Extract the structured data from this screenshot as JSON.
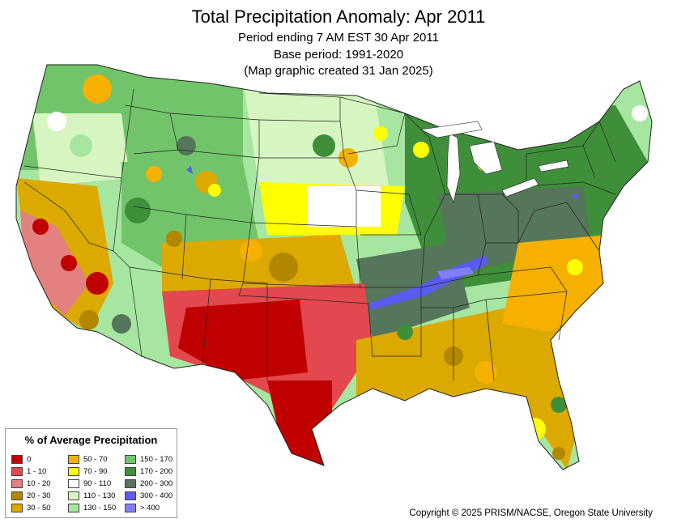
{
  "header": {
    "title": "Total Precipitation Anomaly: Apr 2011",
    "subtitle_period": "Period ending 7 AM EST 30 Apr 2011",
    "subtitle_base": "Base period: 1991-2020",
    "subtitle_created": "(Map graphic created 31 Jan 2025)"
  },
  "legend": {
    "title": "% of Average Precipitation",
    "classes": [
      {
        "label": "0",
        "color": "#c00000"
      },
      {
        "label": "1 - 10",
        "color": "#e2484d"
      },
      {
        "label": "10 - 20",
        "color": "#e38080"
      },
      {
        "label": "20 - 30",
        "color": "#b38600"
      },
      {
        "label": "30 - 50",
        "color": "#dba900"
      },
      {
        "label": "50 - 70",
        "color": "#f5b000"
      },
      {
        "label": "70 - 90",
        "color": "#ffff00"
      },
      {
        "label": "90 - 110",
        "color": "#ffffff"
      },
      {
        "label": "110 - 130",
        "color": "#d7f5c0"
      },
      {
        "label": "130 - 150",
        "color": "#a6e6a0"
      },
      {
        "label": "150 - 170",
        "color": "#72c46a"
      },
      {
        "label": "170 - 200",
        "color": "#3f8f3a"
      },
      {
        "label": "200 - 300",
        "color": "#55765a"
      },
      {
        "label": "300 - 400",
        "color": "#5b5bf0"
      },
      {
        "label": "> 400",
        "color": "#8080ff"
      }
    ]
  },
  "footer": {
    "copyright": "Copyright © 2025 PRISM/NACSE, Oregon State University"
  }
}
